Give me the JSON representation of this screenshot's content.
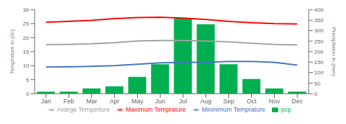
{
  "chart_data": {
    "type": "combo",
    "categories": [
      "Jan",
      "Feb",
      "Mar",
      "Apr",
      "May",
      "Jun",
      "Jul",
      "Aug",
      "Sep",
      "Oct",
      "Nov",
      "Dec"
    ],
    "series": [
      {
        "name": "pcp",
        "type": "bar",
        "axis": "y2",
        "color": "#00b050",
        "values": [
          10,
          10,
          25,
          35,
          80,
          140,
          360,
          330,
          140,
          70,
          25,
          10
        ]
      },
      {
        "name": "Maximum Temprature",
        "type": "line",
        "color": "#ff0000",
        "values": [
          25.5,
          25.8,
          26.2,
          26.8,
          27.2,
          27.3,
          27.0,
          26.5,
          25.8,
          25.3,
          25.0,
          24.9
        ]
      },
      {
        "name": "Mininimum Temprature",
        "type": "line",
        "color": "#4472c4",
        "values": [
          9.5,
          9.6,
          9.8,
          10.0,
          10.5,
          11.0,
          11.2,
          11.2,
          11.5,
          11.5,
          11.2,
          10.2
        ]
      },
      {
        "name": "Avarge Temperture",
        "type": "line",
        "color": "#a0a0a0",
        "values": [
          17.5,
          17.6,
          17.8,
          18.2,
          18.8,
          19.0,
          19.0,
          18.8,
          18.5,
          18.0,
          17.6,
          17.4
        ]
      }
    ],
    "ylim": [
      0,
      30
    ],
    "yticks": [
      0,
      5,
      10,
      15,
      20,
      25,
      30
    ],
    "y2lim": [
      0,
      400
    ],
    "y2ticks": [
      0,
      50,
      100,
      150,
      200,
      250,
      300,
      350,
      400
    ],
    "ylabel": "Temprature in (0c)",
    "y2label": "Precipitaion in (mm)",
    "grid": false,
    "legend": "bottom"
  }
}
